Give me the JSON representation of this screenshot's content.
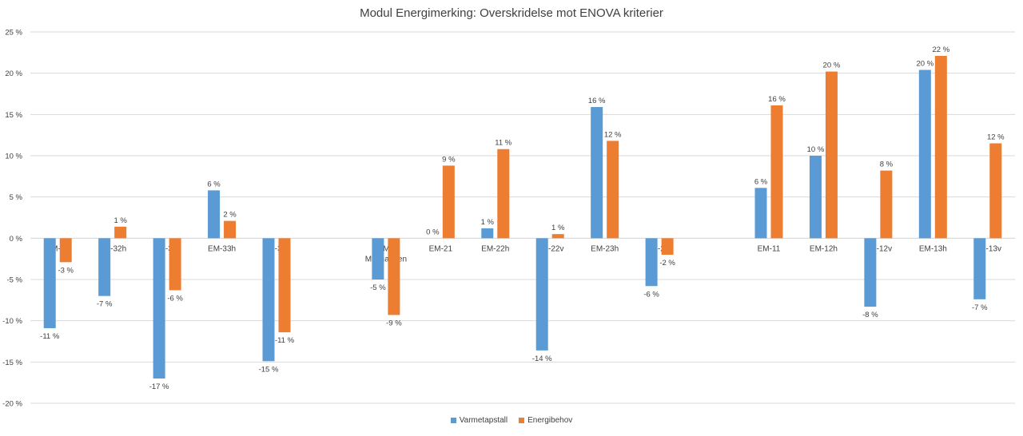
{
  "chart_data": {
    "type": "bar",
    "title": "Modul Energimerking: Overskridelse mot ENOVA kriterier",
    "ylim": [
      -20,
      25
    ],
    "y_ticks": [
      "-20 %",
      "-15 %",
      "-10 %",
      "-5 %",
      "0 %",
      "5 %",
      "10 %",
      "15 %",
      "20 %",
      "25 %"
    ],
    "grid": true,
    "legend_position": "bottom",
    "categories": [
      "EM-31",
      "EM-32h",
      "EM-32v",
      "EM-33h",
      "EM-33v",
      "",
      "EM5\nMalmaugen",
      "EM-21",
      "EM-22h",
      "EM-22v",
      "EM-23h",
      "EM-23v",
      "",
      "EM-11",
      "EM-12h",
      "EM-12v",
      "EM-13h",
      "EM-13v"
    ],
    "series": [
      {
        "name": "Varmetapstall",
        "color": "#5B9BD5",
        "values": [
          -10.9,
          -7.0,
          -17.0,
          5.8,
          -14.9,
          null,
          -5.0,
          0.0,
          1.2,
          -13.6,
          15.9,
          -5.8,
          null,
          6.1,
          10.0,
          -8.3,
          20.4,
          -7.4
        ],
        "labels": [
          "-11 %",
          "-7 %",
          "-17 %",
          "6 %",
          "-15 %",
          "",
          "-5 %",
          "0 %",
          "1 %",
          "-14 %",
          "16 %",
          "-6 %",
          "",
          "6 %",
          "10 %",
          "-8 %",
          "20 %",
          "-7 %"
        ]
      },
      {
        "name": "Energibehov",
        "color": "#ED7D31",
        "values": [
          -2.9,
          1.4,
          -6.3,
          2.1,
          -11.4,
          null,
          -9.3,
          8.8,
          10.8,
          0.5,
          11.8,
          -2.0,
          null,
          16.1,
          20.2,
          8.2,
          22.1,
          11.5
        ],
        "labels": [
          "-3 %",
          "1 %",
          "-6 %",
          "2 %",
          "-11 %",
          "",
          "-9 %",
          "9 %",
          "11 %",
          "1 %",
          "12 %",
          "-2 %",
          "",
          "16 %",
          "20 %",
          "8 %",
          "22 %",
          "12 %"
        ]
      }
    ]
  }
}
